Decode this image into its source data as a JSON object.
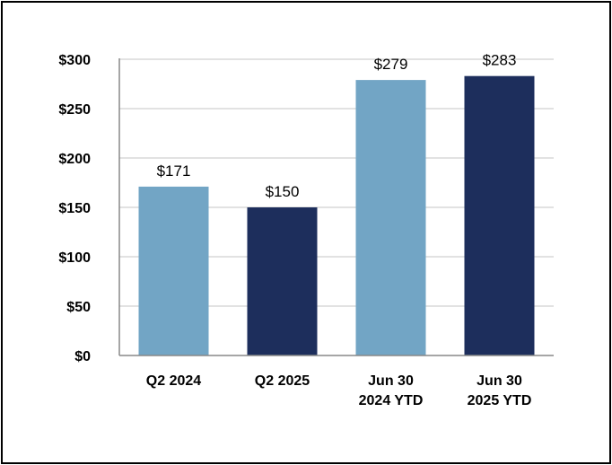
{
  "chart_data": {
    "type": "bar",
    "title": "",
    "xlabel": "",
    "ylabel": "",
    "categories": [
      [
        "Q2 2024"
      ],
      [
        "Q2 2025"
      ],
      [
        "Jun 30",
        "2024 YTD"
      ],
      [
        "Jun 30",
        "2025 YTD"
      ]
    ],
    "values": [
      171,
      150,
      279,
      283
    ],
    "value_labels": [
      "$171",
      "$150",
      "$279",
      "$283"
    ],
    "bar_colors": [
      "#72a5c5",
      "#1d2e5c",
      "#72a5c5",
      "#1d2e5c"
    ],
    "ylim": [
      0,
      300
    ],
    "yticks": [
      0,
      50,
      100,
      150,
      200,
      250,
      300
    ],
    "ytick_labels": [
      "$0",
      "$50",
      "$100",
      "$150",
      "$200",
      "$250",
      "$300"
    ],
    "grid": true,
    "grid_color": "#d9d9d9",
    "legend": "none"
  }
}
